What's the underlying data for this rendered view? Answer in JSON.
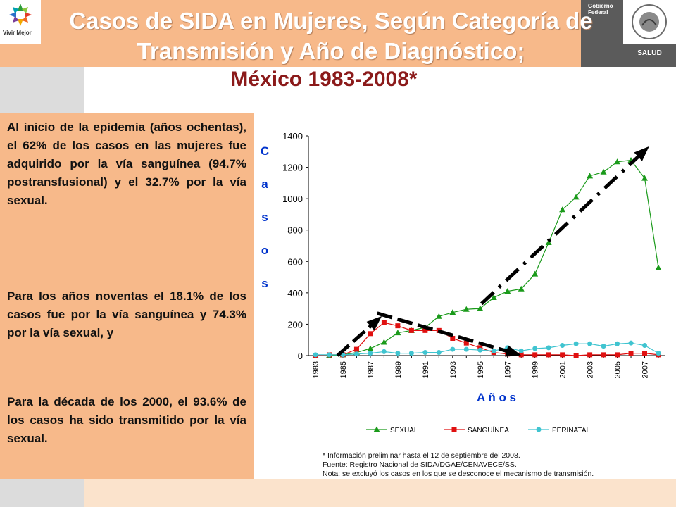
{
  "header": {
    "logo_text": "Vivir Mejor",
    "gov_text": "Gobierno Federal",
    "salud_text": "SALUD",
    "title": "Casos de SIDA en Mujeres, Según Categoría de Transmisión y Año de Diagnóstico;",
    "subtitle": "México 1983-2008*"
  },
  "text": {
    "para1": "Al inicio de la epidemia (años ochentas), el 62% de los casos en las mujeres fue adquirido por la vía sanguínea (94.7% postransfusional) y el 32.7% por la vía sexual.",
    "para2": "Para los años noventas el 18.1% de los casos fue por la vía sanguínea y 74.3% por la vía sexual, y",
    "para3": "Para la década de los 2000, el 93.6% de los casos ha sido transmitido por la vía sexual."
  },
  "notes": [
    "* Información preliminar hasta el 12 de septiembre del 2008.",
    "Fuente: Registro Nacional de SIDA/DGAE/CENAVECE/SS.",
    "Nota: se excluyó los casos en los que se desconoce el mecanismo de transmisión."
  ],
  "colors": {
    "sexual": "#1a9a1a",
    "sanguinea": "#e01010",
    "perinatal": "#40c4d0",
    "axis_label": "#0033cc"
  },
  "chart_data": {
    "type": "line",
    "title": "",
    "ylabel": "C a s o s",
    "xlabel": "A ñ o s",
    "ylim": [
      0,
      1400
    ],
    "yticks": [
      0,
      200,
      400,
      600,
      800,
      1000,
      1200,
      1400
    ],
    "xtick_labels": [
      "1983",
      "1985",
      "1987",
      "1989",
      "1991",
      "1993",
      "1995",
      "1997",
      "1999",
      "2001",
      "2003",
      "2005",
      "2007"
    ],
    "x": [
      1983,
      1984,
      1985,
      1986,
      1987,
      1988,
      1989,
      1990,
      1991,
      1992,
      1993,
      1994,
      1995,
      1996,
      1997,
      1998,
      1999,
      2000,
      2001,
      2002,
      2003,
      2004,
      2005,
      2006,
      2007,
      2008
    ],
    "series": [
      {
        "name": "SEXUAL",
        "values": [
          0,
          0,
          5,
          20,
          45,
          85,
          145,
          160,
          180,
          250,
          275,
          295,
          300,
          370,
          410,
          425,
          520,
          720,
          930,
          1010,
          1145,
          1170,
          1235,
          1245,
          1130,
          560
        ]
      },
      {
        "name": "SANGUÍNEA",
        "values": [
          0,
          5,
          5,
          40,
          140,
          210,
          190,
          160,
          160,
          160,
          110,
          80,
          50,
          20,
          10,
          5,
          5,
          5,
          5,
          0,
          5,
          5,
          5,
          15,
          15,
          5
        ]
      },
      {
        "name": "PERINATAL",
        "values": [
          5,
          5,
          5,
          10,
          15,
          25,
          15,
          15,
          20,
          20,
          40,
          40,
          35,
          30,
          50,
          30,
          45,
          50,
          65,
          75,
          75,
          60,
          75,
          80,
          65,
          15
        ]
      }
    ],
    "legend_position": "bottom",
    "grid": false
  }
}
